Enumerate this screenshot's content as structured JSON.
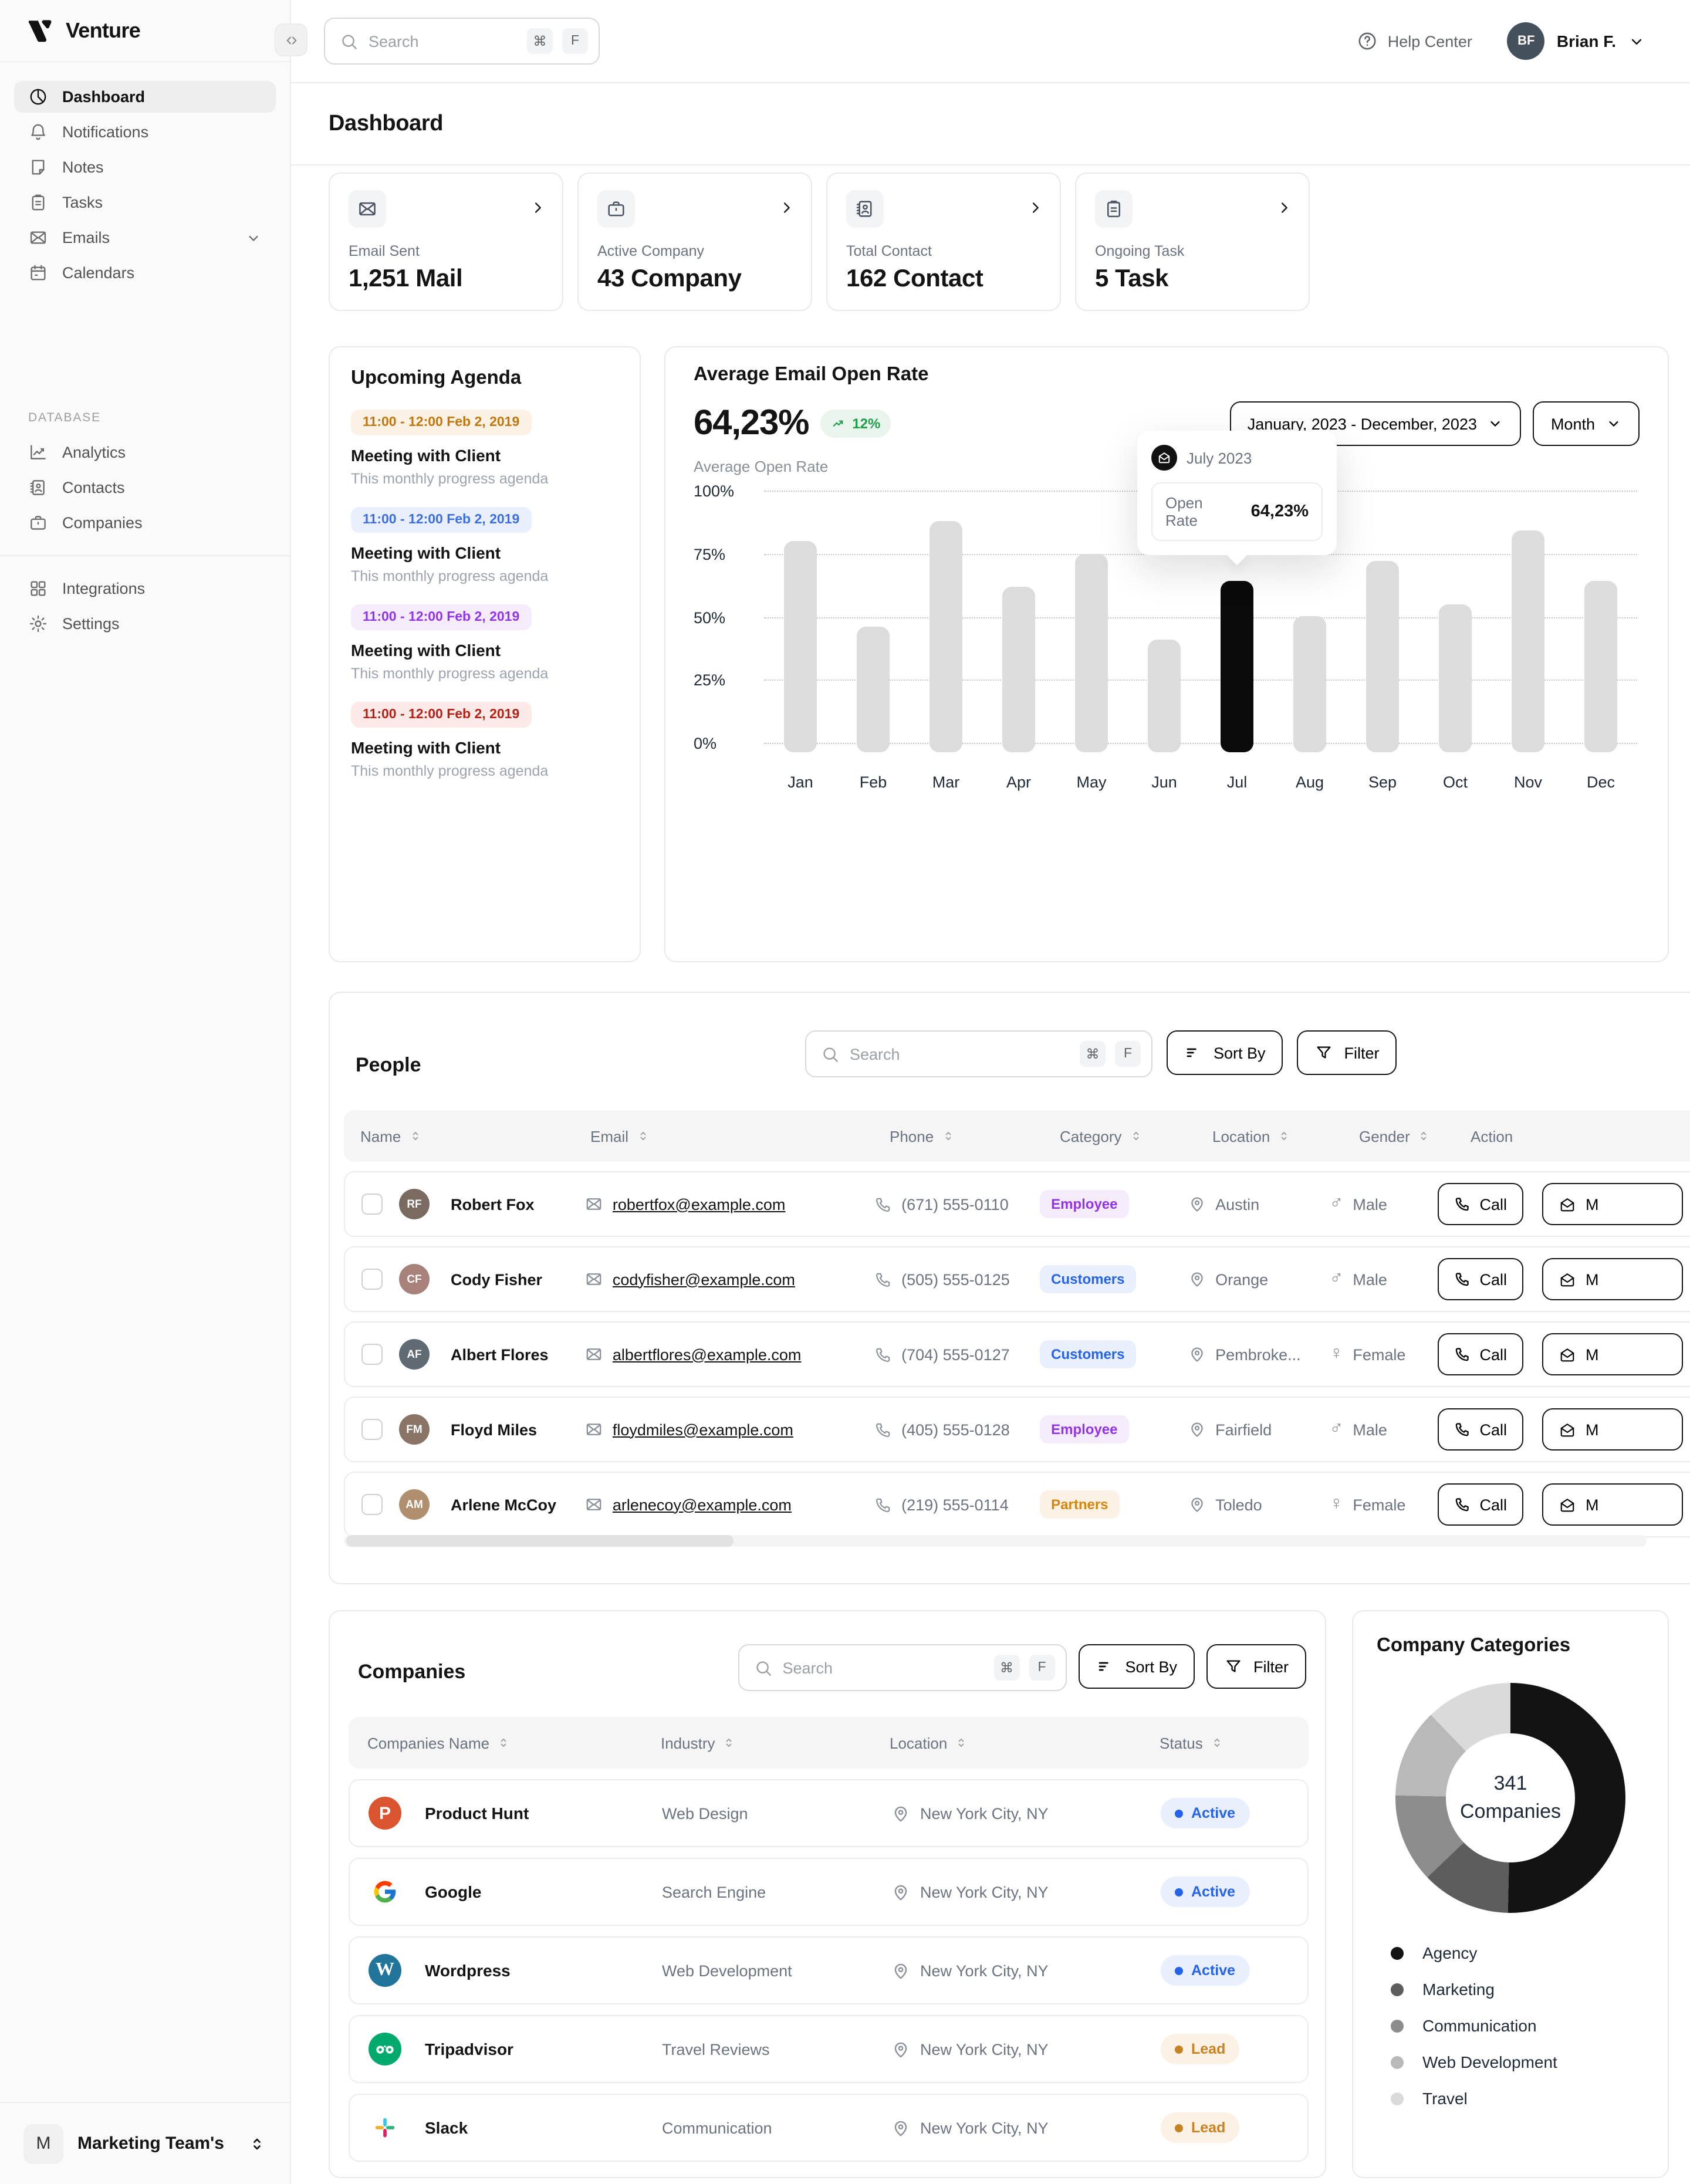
{
  "brand": {
    "name": "Venture"
  },
  "topbar": {
    "search": {
      "placeholder": "Search",
      "keys": [
        "⌘",
        "F"
      ]
    },
    "help_label": "Help Center",
    "user": {
      "name": "Brian F.",
      "initials": "BF"
    }
  },
  "page": {
    "title": "Dashboard"
  },
  "sidebar": {
    "main_items": [
      {
        "label": "Dashboard",
        "icon": "dashboard-icon",
        "active": true
      },
      {
        "label": "Notifications",
        "icon": "bell-icon"
      },
      {
        "label": "Notes",
        "icon": "note-icon"
      },
      {
        "label": "Tasks",
        "icon": "tasks-icon"
      },
      {
        "label": "Emails",
        "icon": "mail-icon",
        "chevron": true
      },
      {
        "label": "Calendars",
        "icon": "calendar-icon"
      }
    ],
    "database_label": "DATABASE",
    "database_items": [
      {
        "label": "Analytics",
        "icon": "analytics-icon"
      },
      {
        "label": "Contacts",
        "icon": "contacts-icon"
      },
      {
        "label": "Companies",
        "icon": "briefcase-icon"
      }
    ],
    "secondary_items": [
      {
        "label": "Integrations",
        "icon": "grid-icon"
      },
      {
        "label": "Settings",
        "icon": "gear-icon"
      }
    ],
    "workspace": {
      "initial": "M",
      "name": "Marketing Team's"
    }
  },
  "stats": [
    {
      "label": "Email Sent",
      "value": "1,251 Mail",
      "icon": "mail-icon"
    },
    {
      "label": "Active Company",
      "value": "43 Company",
      "icon": "briefcase-icon"
    },
    {
      "label": "Total Contact",
      "value": "162 Contact",
      "icon": "contacts-icon"
    },
    {
      "label": "Ongoing Task",
      "value": "5 Task",
      "icon": "tasks-icon"
    }
  ],
  "agenda": {
    "title": "Upcoming Agenda",
    "items": [
      {
        "time": "11:00 - 12:00 Feb 2, 2019",
        "event": "Meeting with Client",
        "description": "This monthly progress agenda",
        "color": "orange"
      },
      {
        "time": "11:00 - 12:00 Feb 2, 2019",
        "event": "Meeting with Client",
        "description": "This monthly progress agenda",
        "color": "blue"
      },
      {
        "time": "11:00 - 12:00 Feb 2, 2019",
        "event": "Meeting with Client",
        "description": "This monthly progress agenda",
        "color": "purple"
      },
      {
        "time": "11:00 - 12:00 Feb 2, 2019",
        "event": "Meeting with Client",
        "description": "This monthly progress agenda",
        "color": "red"
      }
    ]
  },
  "open_rate": {
    "title": "Average Email Open Rate",
    "value": "64,23%",
    "delta": "12%",
    "subtitle": "Average Open Rate",
    "range_label": "January, 2023 - December, 2023",
    "granularity_label": "Month",
    "tooltip": {
      "period": "July 2023",
      "label": "Open Rate",
      "value": "64,23%"
    }
  },
  "chart_data": [
    {
      "type": "bar",
      "title": "Average Email Open Rate",
      "categories": [
        "Jan",
        "Feb",
        "Mar",
        "Apr",
        "May",
        "Jun",
        "Jul",
        "Aug",
        "Sep",
        "Oct",
        "Nov",
        "Dec"
      ],
      "values": [
        80,
        46,
        88,
        62,
        75,
        41,
        64.23,
        50,
        72,
        55,
        84,
        64
      ],
      "unit": "%",
      "ylim": [
        0,
        100
      ],
      "yticks": [
        "100%",
        "75%",
        "50%",
        "25%",
        "0%"
      ],
      "highlight_index": 6,
      "highlight_color": "#0a0a0a",
      "bar_color": "#dcdcdc",
      "grid": "dashed-horizontal"
    },
    {
      "type": "donut",
      "title": "Company Categories",
      "center_text": "341 Companies",
      "start_angle_deg": 30,
      "segments": [
        {
          "label": "Agency",
          "value": 42,
          "color": "#131313"
        },
        {
          "label": "Marketing",
          "value": 12.5,
          "color": "#5d5d5d"
        },
        {
          "label": "Communication",
          "value": 12.5,
          "color": "#8c8c8c"
        },
        {
          "label": "Web Development",
          "value": 12.5,
          "color": "#b9b9b9"
        },
        {
          "label": "Travel",
          "value": 20.5,
          "color": "#dadada"
        }
      ]
    }
  ],
  "people": {
    "title": "People",
    "search": {
      "placeholder": "Search",
      "keys": [
        "⌘",
        "F"
      ]
    },
    "sort_label": "Sort By",
    "filter_label": "Filter",
    "columns": [
      {
        "label": "Name",
        "sortable": true
      },
      {
        "label": "Email",
        "sortable": true
      },
      {
        "label": "Phone",
        "sortable": true
      },
      {
        "label": "Category",
        "sortable": true
      },
      {
        "label": "Location",
        "sortable": true
      },
      {
        "label": "Gender",
        "sortable": true
      },
      {
        "label": "Action",
        "sortable": false
      }
    ],
    "actions": {
      "call": "Call",
      "message": "M"
    },
    "rows": [
      {
        "name": "Robert Fox",
        "initials": "RF",
        "avatar_color": "#7a6a5f",
        "email": "robertfox@example.com",
        "phone": "(671) 555-0110",
        "category": "Employee",
        "location": "Austin",
        "gender": "Male"
      },
      {
        "name": "Cody Fisher",
        "initials": "CF",
        "avatar_color": "#a8827a",
        "email": "codyfisher@example.com",
        "phone": "(505) 555-0125",
        "category": "Customers",
        "location": "Orange",
        "gender": "Male"
      },
      {
        "name": "Albert Flores",
        "initials": "AF",
        "avatar_color": "#5f6a72",
        "email": "albertflores@example.com",
        "phone": "(704) 555-0127",
        "category": "Customers",
        "location": "Pembroke...",
        "gender": "Female"
      },
      {
        "name": "Floyd Miles",
        "initials": "FM",
        "avatar_color": "#8a7466",
        "email": "floydmiles@example.com",
        "phone": "(405) 555-0128",
        "category": "Employee",
        "location": "Fairfield",
        "gender": "Male"
      },
      {
        "name": "Arlene McCoy",
        "initials": "AM",
        "avatar_color": "#b08f6e",
        "email": "arlenecoy@example.com",
        "phone": "(219) 555-0114",
        "category": "Partners",
        "location": "Toledo",
        "gender": "Female"
      }
    ]
  },
  "companies": {
    "title": "Companies",
    "search": {
      "placeholder": "Search",
      "keys": [
        "⌘",
        "F"
      ]
    },
    "sort_label": "Sort By",
    "filter_label": "Filter",
    "columns": [
      {
        "label": "Companies Name",
        "sortable": true
      },
      {
        "label": "Industry",
        "sortable": true
      },
      {
        "label": "Location",
        "sortable": true
      },
      {
        "label": "Status",
        "sortable": true
      }
    ],
    "rows": [
      {
        "name": "Product Hunt",
        "logo": "producthunt-logo",
        "industry": "Web Design",
        "location": "New York City, NY",
        "status": "Active"
      },
      {
        "name": "Google",
        "logo": "google-logo",
        "industry": "Search Engine",
        "location": "New York City, NY",
        "status": "Active"
      },
      {
        "name": "Wordpress",
        "logo": "wordpress-logo",
        "industry": "Web Development",
        "location": "New York City, NY",
        "status": "Active"
      },
      {
        "name": "Tripadvisor",
        "logo": "tripadvisor-logo",
        "industry": "Travel Reviews",
        "location": "New York City, NY",
        "status": "Lead"
      },
      {
        "name": "Slack",
        "logo": "slack-logo",
        "industry": "Communication",
        "location": "New York City, NY",
        "status": "Lead"
      }
    ]
  },
  "categories_panel": {
    "title": "Company Categories",
    "center_value": "341",
    "center_label": "Companies"
  }
}
